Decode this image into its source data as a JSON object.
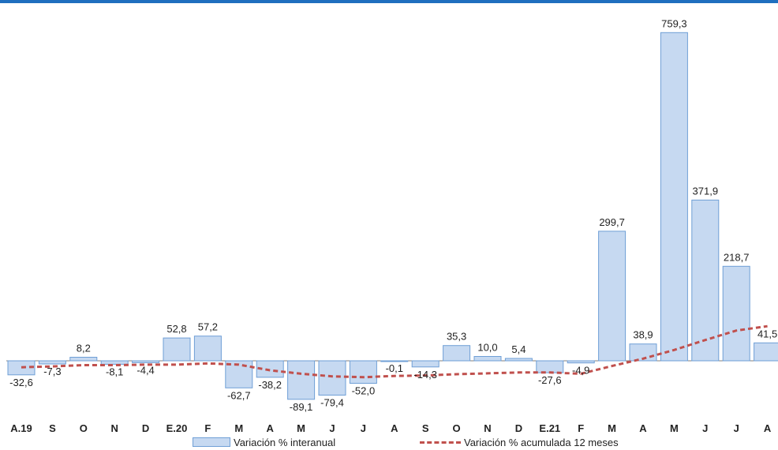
{
  "chart_data": {
    "type": "bar",
    "categories": [
      "A.19",
      "S",
      "O",
      "N",
      "D",
      "E.20",
      "F",
      "M",
      "A",
      "M",
      "J",
      "J",
      "A",
      "S",
      "O",
      "N",
      "D",
      "E.21",
      "F",
      "M",
      "A",
      "M",
      "J",
      "J",
      "A"
    ],
    "series": [
      {
        "name": "Variación % interanual",
        "type": "bar",
        "values": [
          -32.6,
          -7.3,
          8.2,
          -8.1,
          -4.4,
          52.8,
          57.2,
          -62.7,
          -38.2,
          -89.1,
          -79.4,
          -52.0,
          -0.1,
          -14.3,
          35.3,
          10.0,
          5.4,
          -27.6,
          -4.9,
          299.7,
          38.9,
          759.3,
          371.9,
          218.7,
          41.5
        ],
        "labels": [
          "-32,6",
          "-7,3",
          "8,2",
          "-8,1",
          "-4,4",
          "52,8",
          "57,2",
          "-62,7",
          "-38,2",
          "-89,1",
          "-79,4",
          "-52,0",
          "-0,1",
          "-14,3",
          "35,3",
          "10,0",
          "5,4",
          "-27,6",
          "-4,9",
          "299,7",
          "38,9",
          "759,3",
          "371,9",
          "218,7",
          "41,5"
        ],
        "color": "#c6d9f1"
      },
      {
        "name": "Variación % acumulada 12 meses",
        "type": "line",
        "values": [
          -15,
          -13,
          -10,
          -10,
          -9,
          -9,
          -6,
          -9,
          -22,
          -30,
          -36,
          -38,
          -35,
          -34,
          -31,
          -29,
          -27,
          -27,
          -30,
          -12,
          5,
          25,
          48,
          70,
          80
        ],
        "color": "#c0504d"
      }
    ],
    "ylim": [
      -120,
      800
    ],
    "grid": false,
    "legend_position": "bottom"
  }
}
